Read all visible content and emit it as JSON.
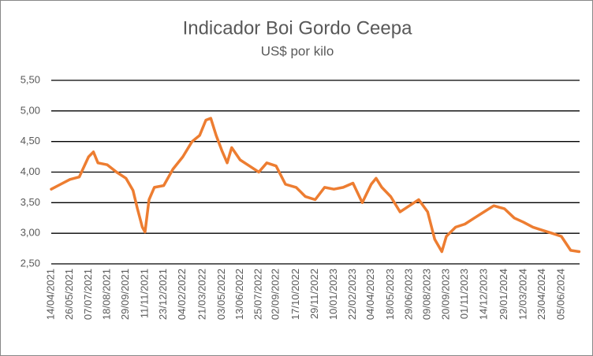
{
  "chart_data": {
    "type": "line",
    "title": "Indicador Boi Gordo Ceepa",
    "subtitle": "US$ por kilo",
    "x": [
      "14/04/2021",
      "05/05/2021",
      "26/05/2021",
      "16/06/2021",
      "07/07/2021",
      "18/07/2021",
      "28/07/2021",
      "18/08/2021",
      "08/09/2021",
      "29/09/2021",
      "15/10/2021",
      "25/10/2021",
      "05/11/2021",
      "11/11/2021",
      "20/11/2021",
      "02/12/2021",
      "23/12/2021",
      "13/01/2022",
      "04/02/2022",
      "25/02/2022",
      "14/03/2022",
      "28/03/2022",
      "08/04/2022",
      "20/04/2022",
      "03/05/2022",
      "15/05/2022",
      "25/05/2022",
      "13/06/2022",
      "04/07/2022",
      "25/07/2022",
      "12/08/2022",
      "02/09/2022",
      "23/09/2022",
      "17/10/2022",
      "07/11/2022",
      "29/11/2022",
      "20/12/2022",
      "10/01/2023",
      "31/01/2023",
      "22/02/2023",
      "15/03/2023",
      "04/04/2023",
      "15/04/2023",
      "28/04/2023",
      "18/05/2023",
      "08/06/2023",
      "29/06/2023",
      "20/07/2023",
      "09/08/2023",
      "25/08/2023",
      "10/09/2023",
      "20/09/2023",
      "11/10/2023",
      "01/11/2023",
      "22/11/2023",
      "14/12/2023",
      "05/01/2024",
      "29/01/2024",
      "20/02/2024",
      "12/03/2024",
      "02/04/2024",
      "23/04/2024",
      "15/05/2024",
      "05/06/2024",
      "26/06/2024",
      "15/07/2024"
    ],
    "values": [
      3.72,
      3.8,
      3.88,
      3.92,
      4.25,
      4.33,
      4.15,
      4.12,
      4.0,
      3.9,
      3.7,
      3.4,
      3.1,
      3.02,
      3.55,
      3.75,
      3.78,
      4.05,
      4.25,
      4.5,
      4.6,
      4.85,
      4.88,
      4.6,
      4.35,
      4.15,
      4.4,
      4.2,
      4.1,
      4.0,
      4.15,
      4.1,
      3.8,
      3.75,
      3.6,
      3.55,
      3.75,
      3.72,
      3.75,
      3.82,
      3.5,
      3.8,
      3.9,
      3.75,
      3.6,
      3.35,
      3.45,
      3.55,
      3.35,
      2.9,
      2.7,
      2.95,
      3.1,
      3.15,
      3.25,
      3.35,
      3.45,
      3.4,
      3.25,
      3.18,
      3.1,
      3.05,
      3.0,
      2.95,
      2.72,
      2.7
    ],
    "color": "#ED7D31",
    "xlim": [
      "14/04/2021",
      "16/07/2024"
    ],
    "xticks": [
      "14/04/2021",
      "26/05/2021",
      "07/07/2021",
      "18/08/2021",
      "29/09/2021",
      "11/11/2021",
      "23/12/2021",
      "04/02/2022",
      "21/03/2022",
      "03/05/2022",
      "13/06/2022",
      "25/07/2022",
      "02/09/2022",
      "17/10/2022",
      "29/11/2022",
      "10/01/2023",
      "22/02/2023",
      "04/04/2023",
      "18/05/2023",
      "29/06/2023",
      "09/08/2023",
      "20/09/2023",
      "01/11/2023",
      "14/12/2023",
      "29/01/2024",
      "12/03/2024",
      "23/04/2024",
      "05/06/2024"
    ],
    "ylim": [
      2.5,
      5.5
    ],
    "yticks": [
      {
        "value": 2.5,
        "label": "2,50"
      },
      {
        "value": 3,
        "label": "3,00"
      },
      {
        "value": 3.5,
        "label": "3,50"
      },
      {
        "value": 4,
        "label": "4,00"
      },
      {
        "value": 4.5,
        "label": "4,50"
      },
      {
        "value": 5,
        "label": "5,00"
      },
      {
        "value": 5.5,
        "label": "5,50"
      }
    ],
    "grid": true
  }
}
